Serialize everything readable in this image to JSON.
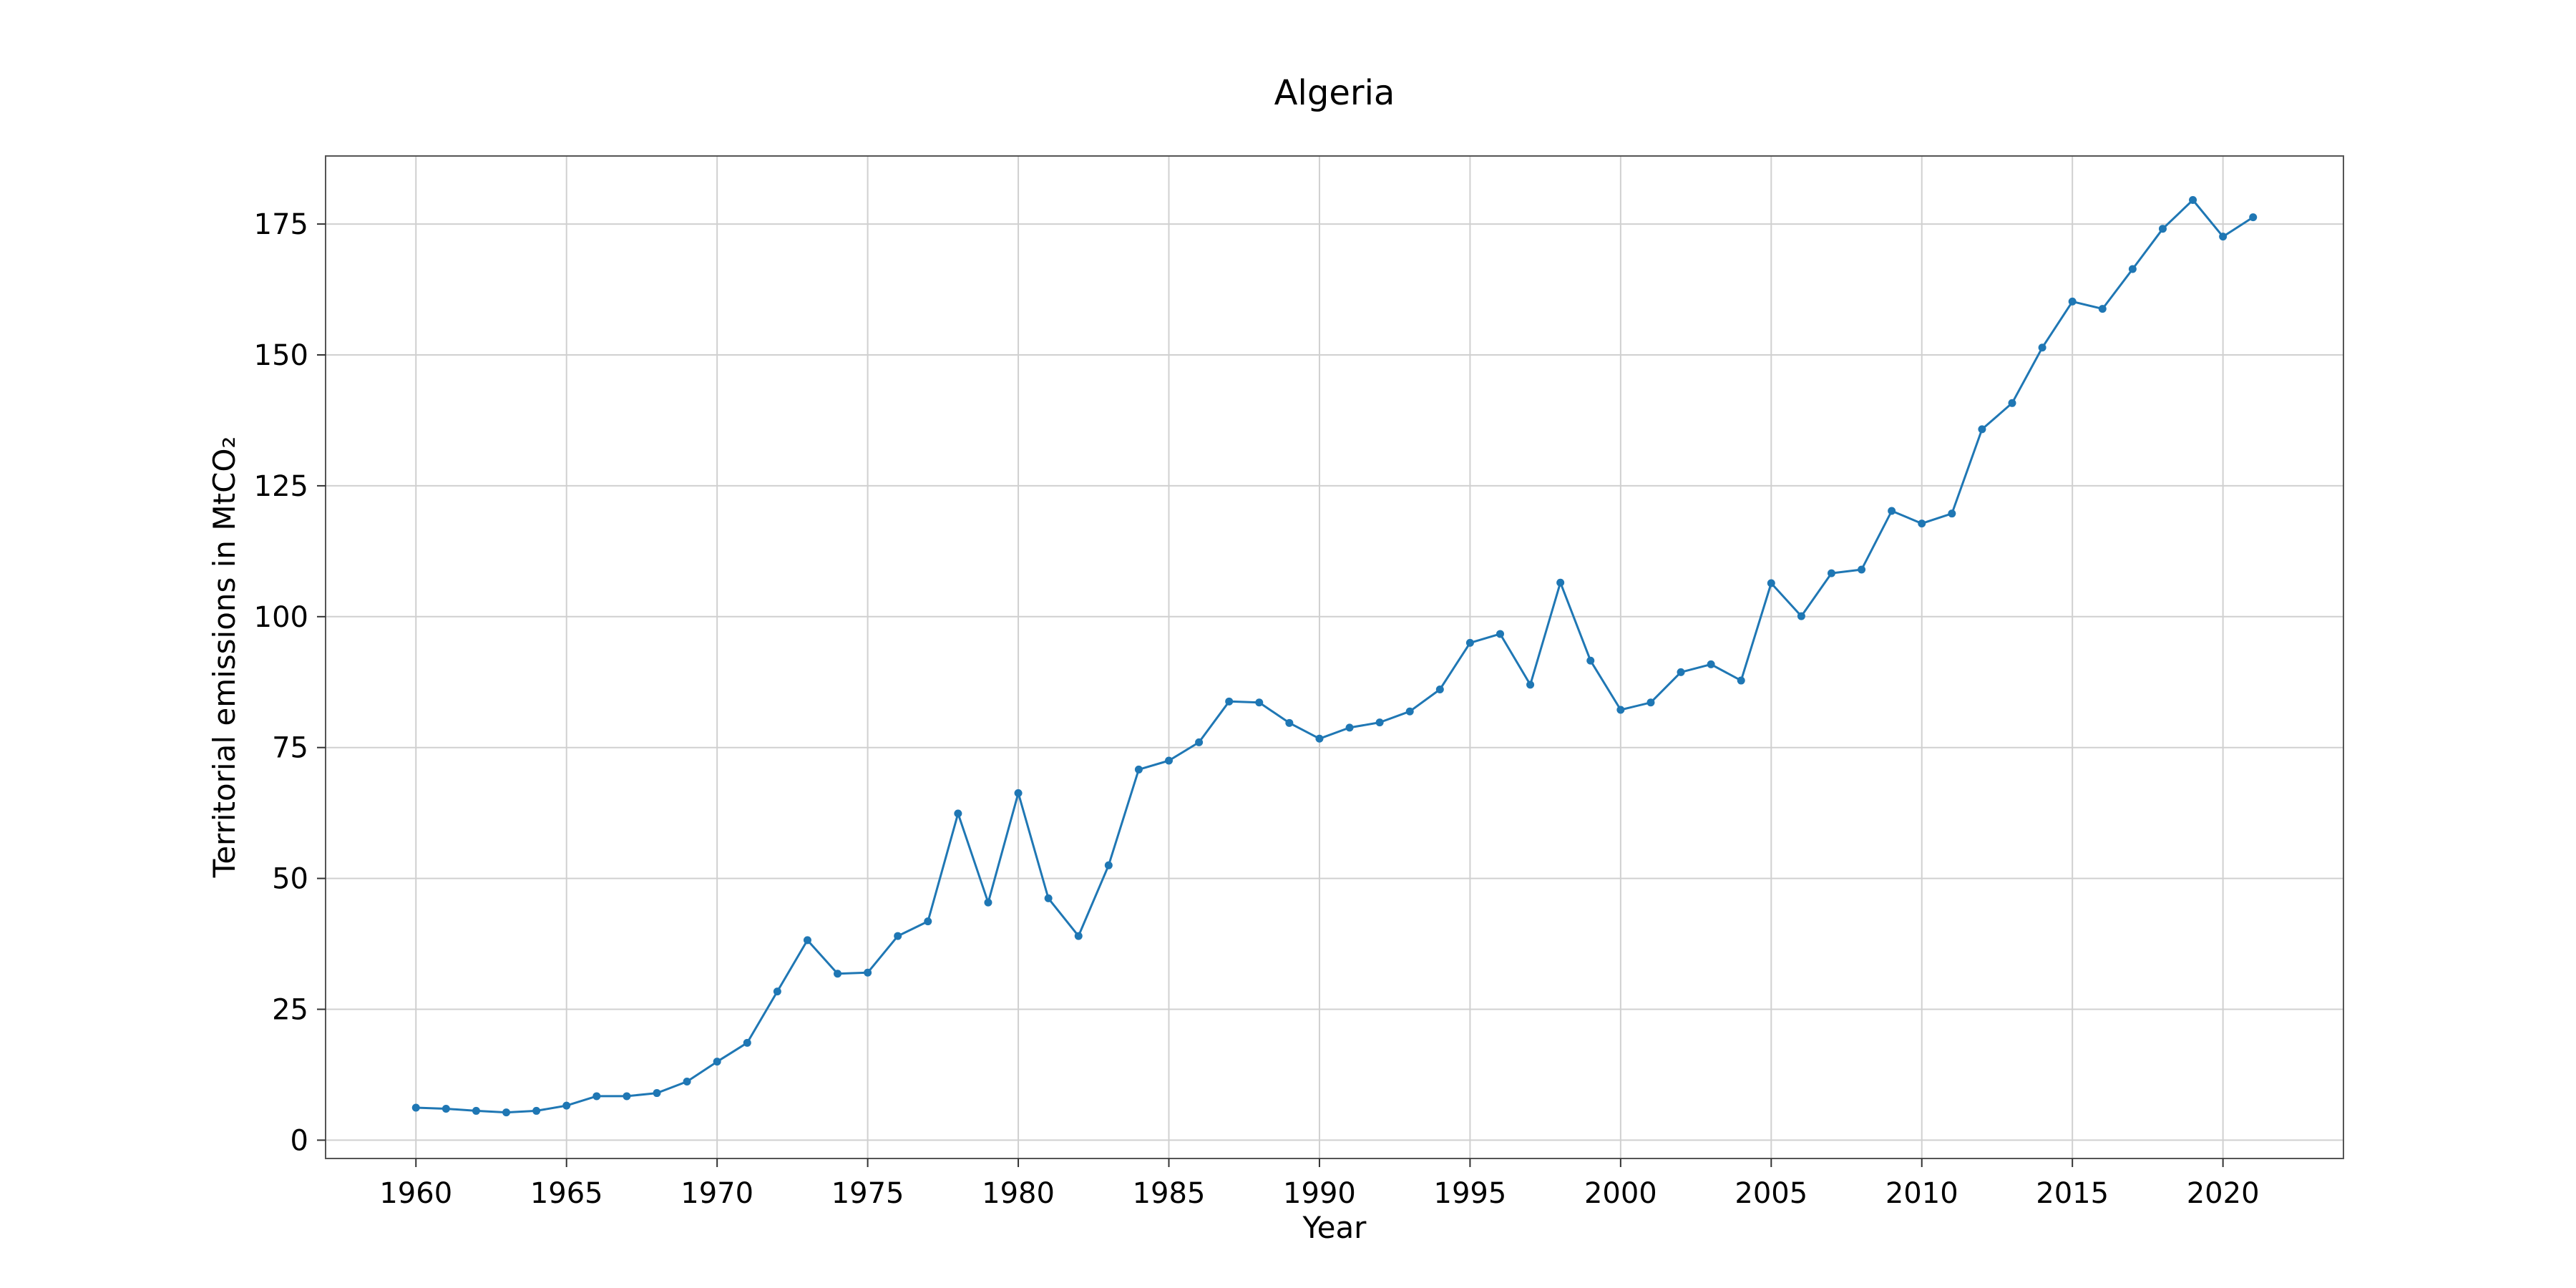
{
  "chart_data": {
    "type": "line",
    "title": "Algeria",
    "xlabel": "Year",
    "ylabel": "Territorial emissions in MtCO₂",
    "xlim": [
      1957,
      2024
    ],
    "ylim": [
      -3.5,
      188
    ],
    "xticks": [
      1960,
      1965,
      1970,
      1975,
      1980,
      1985,
      1990,
      1995,
      2000,
      2005,
      2010,
      2015,
      2020
    ],
    "yticks": [
      0,
      25,
      50,
      75,
      100,
      125,
      150,
      175
    ],
    "grid": true,
    "color": "#1f77b4",
    "series": [
      {
        "x": [
          1960,
          1961,
          1962,
          1963,
          1964,
          1965,
          1966,
          1967,
          1968,
          1969,
          1970,
          1971,
          1972,
          1973,
          1974,
          1975,
          1976,
          1977,
          1978,
          1979,
          1980,
          1981,
          1982,
          1983,
          1984,
          1985,
          1986,
          1987,
          1988,
          1989,
          1990,
          1991,
          1992,
          1993,
          1994,
          1995,
          1996,
          1997,
          1998,
          1999,
          2000,
          2001,
          2002,
          2003,
          2004,
          2005,
          2006,
          2007,
          2008,
          2009,
          2010,
          2011,
          2012,
          2013,
          2014,
          2015,
          2016,
          2017,
          2018,
          2019,
          2020,
          2021
        ],
        "values": [
          6.2,
          6.0,
          5.6,
          5.3,
          5.6,
          6.6,
          8.4,
          8.4,
          9.0,
          11.2,
          15.0,
          18.6,
          28.4,
          38.2,
          31.8,
          32.0,
          39.0,
          41.8,
          62.4,
          45.4,
          66.3,
          46.2,
          39.0,
          52.5,
          70.8,
          72.5,
          76.0,
          83.8,
          83.6,
          79.7,
          76.7,
          78.8,
          79.8,
          81.9,
          86.1,
          95.0,
          96.7,
          87.0,
          106.5,
          91.6,
          82.2,
          83.6,
          89.4,
          90.9,
          87.8,
          106.4,
          100.1,
          108.3,
          109.0,
          120.2,
          117.8,
          119.7,
          135.8,
          140.8,
          151.4,
          160.2,
          158.8,
          166.4,
          174.1,
          179.6,
          172.6,
          176.3
        ]
      }
    ]
  }
}
